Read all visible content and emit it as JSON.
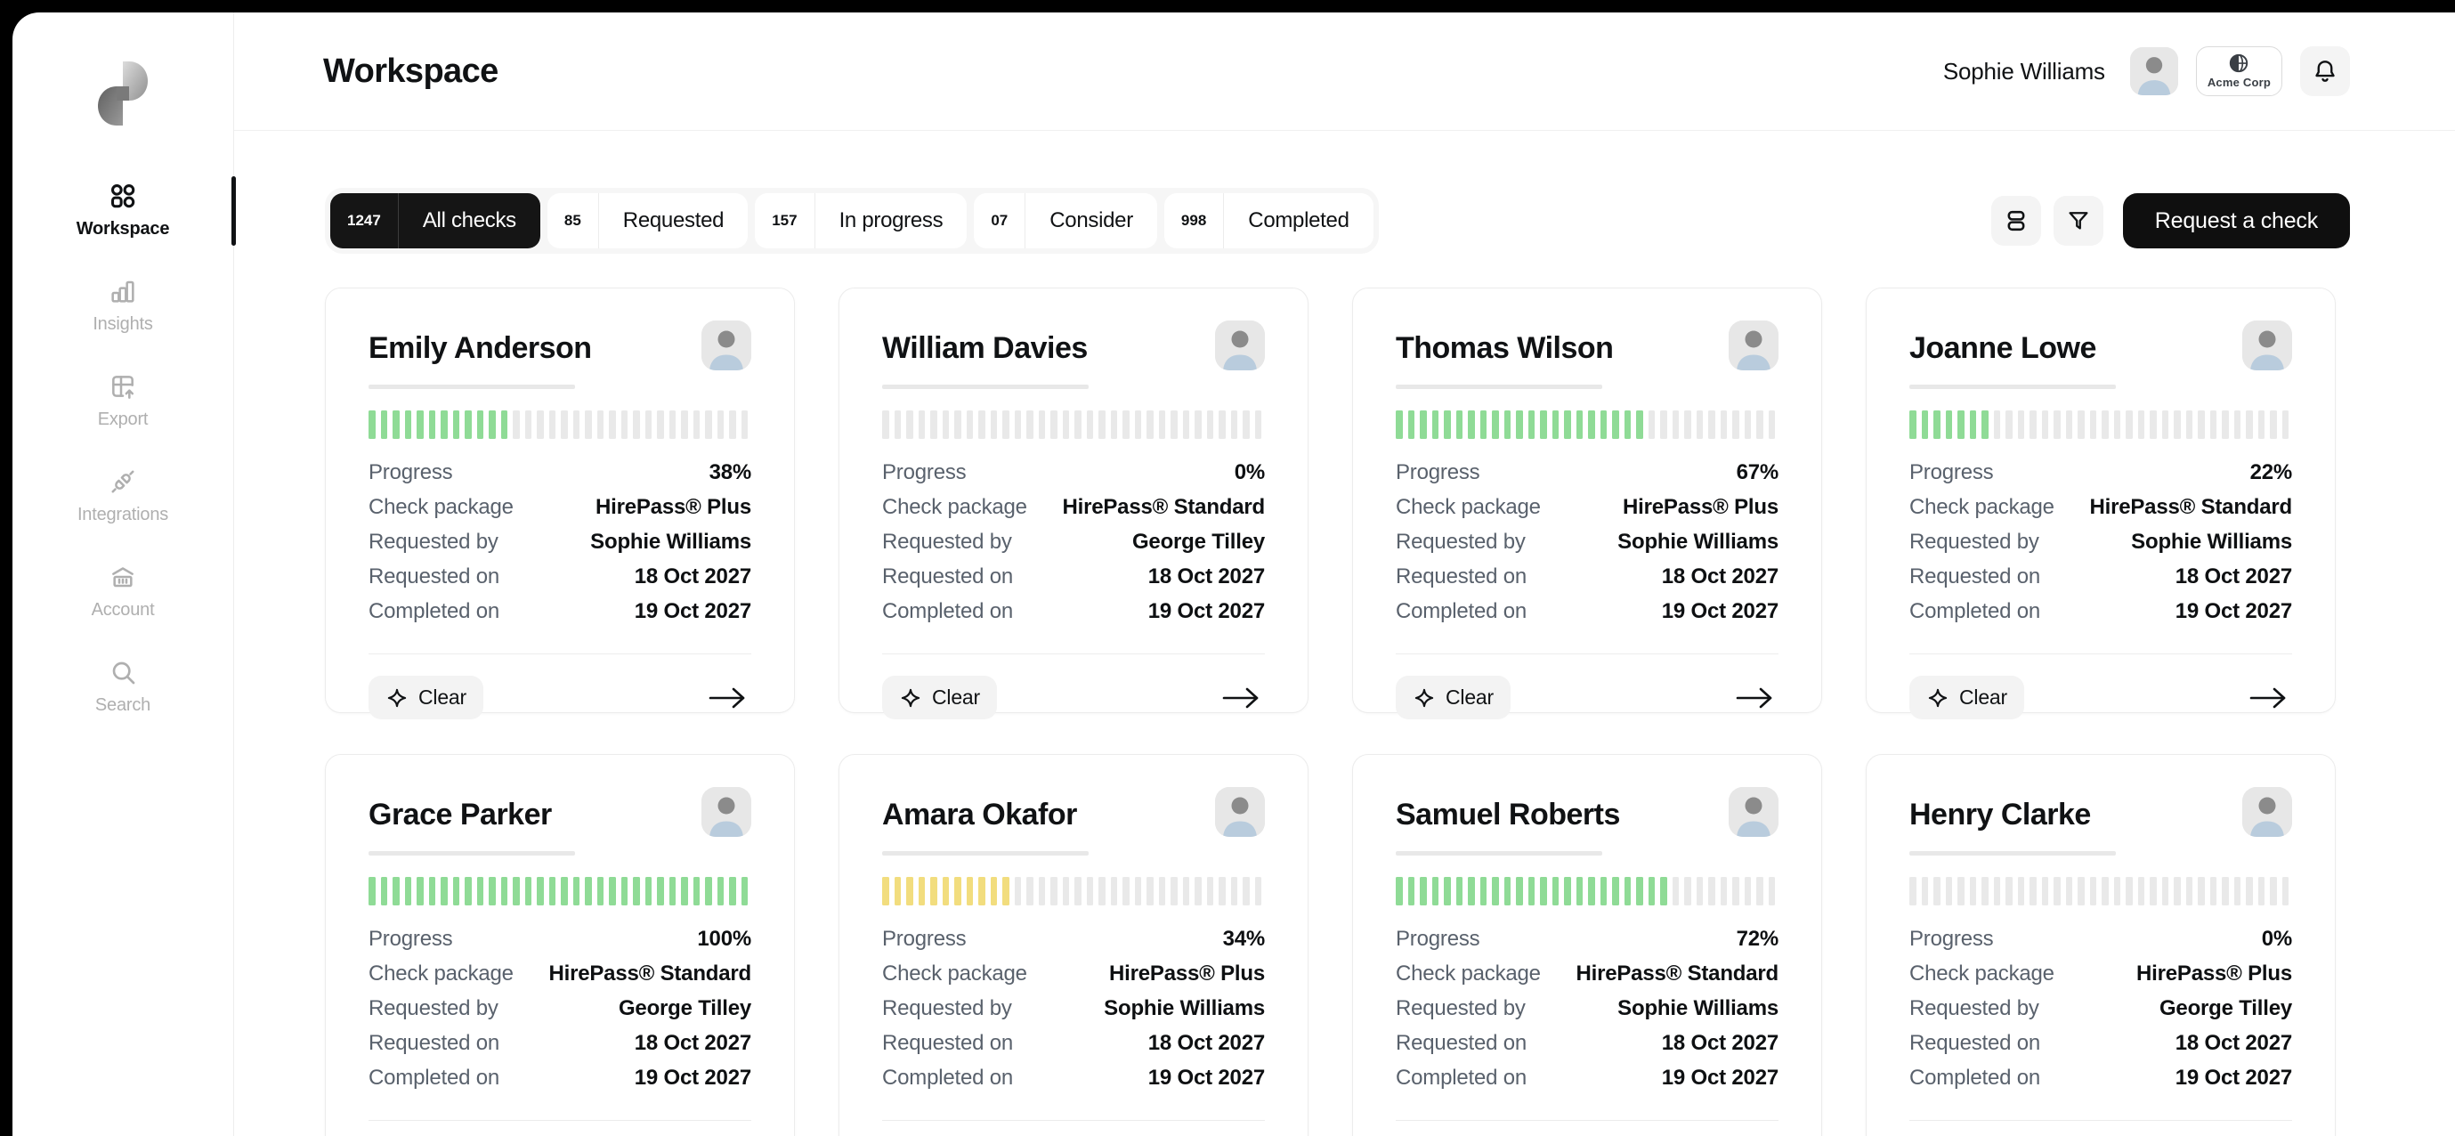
{
  "colors": {
    "accent_black": "#151515",
    "green": "#8FDB96",
    "yellow": "#F2DD7E",
    "stripe_gray": "#E9E9E9",
    "label_gray": "#59616C",
    "frame_gray": "#F5F5F5"
  },
  "sidebar": {
    "items": [
      {
        "id": "workspace",
        "label": "Workspace",
        "icon": "workspace-grid-icon",
        "active": true
      },
      {
        "id": "insights",
        "label": "Insights",
        "icon": "insights-chart-icon",
        "active": false
      },
      {
        "id": "export",
        "label": "Export",
        "icon": "export-table-icon",
        "active": false
      },
      {
        "id": "integrations",
        "label": "Integrations",
        "icon": "integrations-plug-icon",
        "active": false
      },
      {
        "id": "account",
        "label": "Account",
        "icon": "account-bank-icon",
        "active": false
      },
      {
        "id": "search",
        "label": "Search",
        "icon": "search-icon",
        "active": false
      }
    ]
  },
  "header": {
    "title": "Workspace",
    "user_name": "Sophie Williams",
    "org_name": "Acme Corp"
  },
  "toolbar": {
    "tabs": [
      {
        "count": "1247",
        "label": "All checks",
        "active": true
      },
      {
        "count": "85",
        "label": "Requested",
        "active": false
      },
      {
        "count": "157",
        "label": "In progress",
        "active": false
      },
      {
        "count": "07",
        "label": "Consider",
        "active": false
      },
      {
        "count": "998",
        "label": "Completed",
        "active": false
      }
    ],
    "request_label": "Request a check"
  },
  "card_labels": {
    "progress": "Progress",
    "package": "Check package",
    "requested_by": "Requested by",
    "requested_on": "Requested on",
    "completed_on": "Completed on",
    "clear": "Clear"
  },
  "cards": [
    {
      "name": "Emily Anderson",
      "progress_pct": 38,
      "progress_display": "38%",
      "package": "HirePass® Plus",
      "requested_by": "Sophie Williams",
      "requested_on": "18 Oct 2027",
      "completed_on": "19 Oct 2027",
      "bar_color": "green"
    },
    {
      "name": "William Davies",
      "progress_pct": 0,
      "progress_display": "0%",
      "package": "HirePass® Standard",
      "requested_by": "George Tilley",
      "requested_on": "18 Oct 2027",
      "completed_on": "19 Oct 2027",
      "bar_color": "green"
    },
    {
      "name": "Thomas Wilson",
      "progress_pct": 67,
      "progress_display": "67%",
      "package": "HirePass® Plus",
      "requested_by": "Sophie Williams",
      "requested_on": "18 Oct 2027",
      "completed_on": "19 Oct 2027",
      "bar_color": "green"
    },
    {
      "name": "Joanne Lowe",
      "progress_pct": 22,
      "progress_display": "22%",
      "package": "HirePass® Standard",
      "requested_by": "Sophie Williams",
      "requested_on": "18 Oct 2027",
      "completed_on": "19 Oct 2027",
      "bar_color": "green"
    },
    {
      "name": "Grace Parker",
      "progress_pct": 100,
      "progress_display": "100%",
      "package": "HirePass® Standard",
      "requested_by": "George Tilley",
      "requested_on": "18 Oct 2027",
      "completed_on": "19 Oct 2027",
      "bar_color": "green"
    },
    {
      "name": "Amara Okafor",
      "progress_pct": 34,
      "progress_display": "34%",
      "package": "HirePass® Plus",
      "requested_by": "Sophie Williams",
      "requested_on": "18 Oct 2027",
      "completed_on": "19 Oct 2027",
      "bar_color": "yellow"
    },
    {
      "name": "Samuel Roberts",
      "progress_pct": 72,
      "progress_display": "72%",
      "package": "HirePass® Standard",
      "requested_by": "Sophie Williams",
      "requested_on": "18 Oct 2027",
      "completed_on": "19 Oct 2027",
      "bar_color": "green"
    },
    {
      "name": "Henry Clarke",
      "progress_pct": 0,
      "progress_display": "0%",
      "package": "HirePass® Plus",
      "requested_by": "George Tilley",
      "requested_on": "18 Oct 2027",
      "completed_on": "19 Oct 2027",
      "bar_color": "green"
    }
  ]
}
